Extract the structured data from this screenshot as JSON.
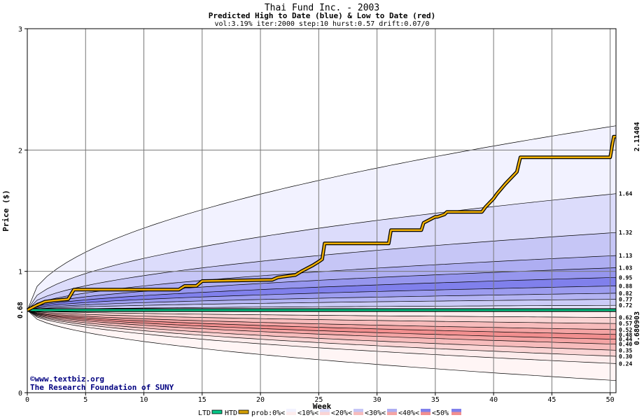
{
  "chart_data": {
    "type": "area",
    "title": "Thai Fund Inc. - 2003",
    "subtitle": "Predicted High to Date (blue) &  Low to Date (red)",
    "params": "vol:3.19% iter:2000 step:10 hurst:0.57 drift:0.07/0",
    "xlabel": "Week",
    "ylabel": "Price ($)",
    "xlim": [
      0,
      50.5
    ],
    "ylim": [
      0,
      3
    ],
    "x_ticks": [
      "0",
      "5",
      "10",
      "15",
      "20",
      "25",
      "30",
      "35",
      "40",
      "45",
      "50"
    ],
    "y_ticks": [
      "0",
      "1",
      "2",
      "3"
    ],
    "start_price": 0.68,
    "start_price_label": "0.68",
    "last_high_label": "2.11404",
    "last_low_label": "0.680903",
    "high_bands": [
      {
        "end": 2.2,
        "color": "#f2f2ff"
      },
      {
        "end": 1.64,
        "color": "#dcdcfb"
      },
      {
        "end": 1.32,
        "color": "#c6c6f6"
      },
      {
        "end": 1.13,
        "color": "#aeaef2"
      },
      {
        "end": 1.03,
        "color": "#9696ee"
      },
      {
        "end": 0.95,
        "color": "#8080ec"
      },
      {
        "end": 0.88,
        "color": "#9c9cef"
      },
      {
        "end": 0.82,
        "color": "#b4b4f3"
      },
      {
        "end": 0.77,
        "color": "#cbcbf7"
      },
      {
        "end": 0.72,
        "color": "#e2e2fb"
      }
    ],
    "low_bands": [
      {
        "end": 0.62,
        "color": "#fdecec"
      },
      {
        "end": 0.57,
        "color": "#fad4d4"
      },
      {
        "end": 0.52,
        "color": "#f7bcbc"
      },
      {
        "end": 0.48,
        "color": "#f4a4a4"
      },
      {
        "end": 0.44,
        "color": "#f28f8f"
      },
      {
        "end": 0.4,
        "color": "#f4a4a4"
      },
      {
        "end": 0.35,
        "color": "#f7bcbc"
      },
      {
        "end": 0.3,
        "color": "#fad4d4"
      },
      {
        "end": 0.24,
        "color": "#fdecec"
      },
      {
        "end": 0.1,
        "color": "#fff5f5"
      }
    ],
    "right_labels": [
      "1.64",
      "1.32",
      "1.13",
      "1.03",
      "0.95",
      "0.88",
      "0.82",
      "0.77",
      "0.72",
      "0.62",
      "0.57",
      "0.52",
      "0.48",
      "0.44",
      "0.40",
      "0.35",
      "0.30",
      "0.24"
    ],
    "htd_series": {
      "name": "HTD",
      "x": [
        0,
        0.8,
        1.5,
        2.3,
        3.5,
        4.0,
        13.0,
        13.5,
        14.5,
        15.0,
        21.0,
        21.5,
        23.0,
        23.5,
        24.5,
        25.0,
        25.3,
        25.5,
        31.0,
        31.2,
        33.8,
        34.0,
        35.0,
        35.2,
        35.8,
        36.0,
        39.0,
        39.3,
        40.0,
        40.3,
        41.0,
        41.2,
        42.0,
        42.3,
        50.0,
        50.3,
        50.5
      ],
      "y": [
        0.68,
        0.72,
        0.75,
        0.76,
        0.77,
        0.85,
        0.85,
        0.88,
        0.88,
        0.92,
        0.93,
        0.95,
        0.97,
        1.0,
        1.05,
        1.08,
        1.1,
        1.23,
        1.23,
        1.34,
        1.34,
        1.4,
        1.45,
        1.45,
        1.47,
        1.49,
        1.49,
        1.53,
        1.6,
        1.64,
        1.72,
        1.74,
        1.82,
        1.94,
        1.94,
        2.11,
        2.11
      ]
    },
    "ltd_series": {
      "name": "LTD",
      "value": 0.6809
    },
    "legend": [
      {
        "label": "LTD",
        "color": "#00c888"
      },
      {
        "label": "HTD",
        "color": "#d4a000"
      },
      {
        "label": "prob:0%<",
        "color": "#ffffff"
      },
      {
        "label": "<10%<",
        "color": "#f2f2ff"
      },
      {
        "label": "<20%<",
        "color": "#dcdcfb"
      },
      {
        "label": "<30%<",
        "color": "#c6c6f6"
      },
      {
        "label": "<40%<",
        "color": "#aeaef2"
      },
      {
        "label": "<50%",
        "color": "#8080ec"
      }
    ],
    "legend_low_colors": [
      "#ffffff",
      "#fdecec",
      "#fad4d4",
      "#f7bcbc",
      "#f4a4a4",
      "#f28f8f"
    ],
    "grid": true
  },
  "credits": {
    "symbol": "©",
    "site": "www.textbiz.org",
    "org": "The Research Foundation of SUNY"
  },
  "colors": {
    "ltd": "#00c888",
    "ltd_label": "#008050",
    "htd": "#f0b000",
    "htd_label": "#8b6a00"
  }
}
